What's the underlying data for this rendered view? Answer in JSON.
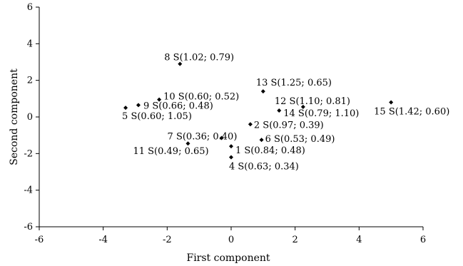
{
  "chart_data": {
    "type": "scatter",
    "title": "",
    "xlabel": "First component",
    "ylabel": "Second component",
    "xlim": [
      -6,
      6
    ],
    "ylim": [
      -6,
      6
    ],
    "xticks": [
      "-6",
      "-4",
      "-2",
      "0",
      "2",
      "4",
      "6"
    ],
    "yticks": [
      "-6",
      "-4",
      "-2",
      "0",
      "2",
      "4",
      "6"
    ],
    "grid": false,
    "marker": "diamond",
    "marker_color": "#000000",
    "points": [
      {
        "label": "1 S(0.84; 0.48)",
        "x": 0.0,
        "y": -1.6
      },
      {
        "label": "2 S(0.97; 0.39)",
        "x": 0.6,
        "y": -0.4
      },
      {
        "label": "4 S(0.63; 0.34)",
        "x": 0.0,
        "y": -2.2
      },
      {
        "label": "5 S(0.60; 1.05)",
        "x": -3.3,
        "y": 0.5
      },
      {
        "label": "6 S(0.53; 0.49)",
        "x": 0.95,
        "y": -1.25
      },
      {
        "label": "7 S(0.36; 0.40)",
        "x": -0.3,
        "y": -1.15
      },
      {
        "label": "8 S(1.02; 0.79)",
        "x": -1.6,
        "y": 2.9
      },
      {
        "label": "9 S(0.66; 0.48)",
        "x": -2.9,
        "y": 0.65
      },
      {
        "label": "10 S(0.60; 0.52)",
        "x": -2.25,
        "y": 0.95
      },
      {
        "label": "11 S(0.49; 0.65)",
        "x": -1.35,
        "y": -1.45
      },
      {
        "label": "12 S(1.10; 0.81)",
        "x": 2.25,
        "y": 0.55
      },
      {
        "label": "13 S(1.25; 0.65)",
        "x": 1.0,
        "y": 1.4
      },
      {
        "label": "14 S(0.79; 1.10)",
        "x": 1.5,
        "y": 0.35
      },
      {
        "label": "15 S(1.42; 0.60)",
        "x": 5.0,
        "y": 0.8
      }
    ]
  }
}
